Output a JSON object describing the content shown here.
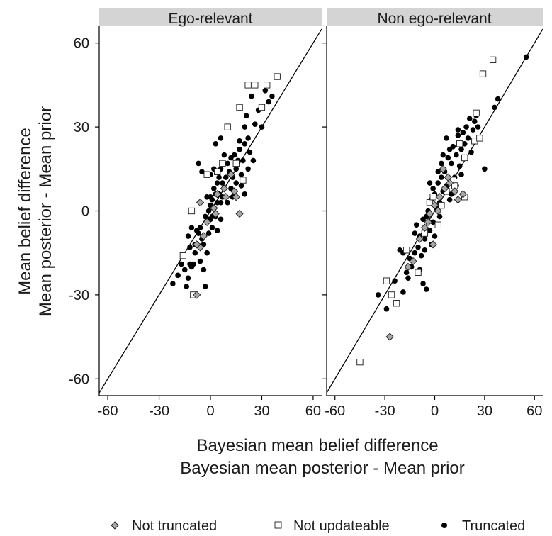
{
  "chart_data": {
    "type": "scatter",
    "xlabel": [
      "Bayesian mean belief difference",
      "Bayesian mean posterior - Mean prior"
    ],
    "ylabel": [
      "Mean belief difference",
      "Mean posterior - Mean prior"
    ],
    "xlim": [
      -65,
      65
    ],
    "ylim": [
      -66,
      66
    ],
    "x_ticks": [
      -60,
      -30,
      0,
      30,
      60
    ],
    "y_ticks": [
      -60,
      -30,
      0,
      30,
      60
    ],
    "reference_line": "y = x",
    "grid": false,
    "legend_position": "bottom",
    "legend": [
      {
        "key": "not_truncated",
        "label": "Not truncated",
        "marker": "diamond",
        "fill": "#a6a6a6"
      },
      {
        "key": "not_updateable",
        "label": "Not updateable",
        "marker": "square",
        "fill": "#ffffff"
      },
      {
        "key": "truncated",
        "label": "Truncated",
        "marker": "circle",
        "fill": "#000000"
      }
    ],
    "panels": [
      {
        "title": "Ego-relevant",
        "series": {
          "not_updateable": [
            [
              -11,
              0
            ],
            [
              -16,
              -16
            ],
            [
              -10,
              -30
            ],
            [
              10,
              30
            ],
            [
              17,
              37
            ],
            [
              22,
              45
            ],
            [
              26,
              45
            ],
            [
              30,
              37
            ],
            [
              33,
              45
            ],
            [
              39,
              48
            ],
            [
              19,
              11
            ],
            [
              15,
              17
            ],
            [
              -2,
              13
            ],
            [
              7,
              17
            ],
            [
              4,
              14
            ]
          ],
          "not_truncated": [
            [
              -6,
              3
            ],
            [
              -8,
              -30
            ],
            [
              17,
              -1
            ],
            [
              15,
              5
            ],
            [
              12,
              13
            ],
            [
              9,
              5
            ],
            [
              8,
              8
            ],
            [
              4,
              6
            ],
            [
              14,
              7
            ],
            [
              -6,
              -13
            ],
            [
              -8,
              -12
            ],
            [
              -2,
              -4
            ],
            [
              2,
              1
            ],
            [
              -4,
              -9
            ],
            [
              3,
              -1
            ]
          ],
          "truncated": [
            [
              -22,
              -26
            ],
            [
              -19,
              -23
            ],
            [
              -17,
              -19
            ],
            [
              -15,
              -21
            ],
            [
              -13,
              -24
            ],
            [
              -14,
              -27
            ],
            [
              -12,
              -19
            ],
            [
              -11,
              -20
            ],
            [
              -10,
              -19
            ],
            [
              -9,
              -12
            ],
            [
              -8,
              -12
            ],
            [
              -7,
              -8
            ],
            [
              -6,
              -6
            ],
            [
              -8,
              -7
            ],
            [
              -5,
              -10
            ],
            [
              -4,
              -12
            ],
            [
              -2,
              -15
            ],
            [
              -3,
              -2
            ],
            [
              -2,
              -4
            ],
            [
              -1,
              -8
            ],
            [
              -1,
              0
            ],
            [
              0,
              5
            ],
            [
              0,
              2
            ],
            [
              0,
              -3
            ],
            [
              1,
              4
            ],
            [
              1,
              -2
            ],
            [
              2,
              8
            ],
            [
              2,
              1
            ],
            [
              3,
              6
            ],
            [
              3,
              -2
            ],
            [
              4,
              10
            ],
            [
              4,
              3
            ],
            [
              5,
              12
            ],
            [
              5,
              6
            ],
            [
              6,
              -3
            ],
            [
              6,
              15
            ],
            [
              7,
              10
            ],
            [
              7,
              5
            ],
            [
              8,
              8
            ],
            [
              8,
              20
            ],
            [
              9,
              12
            ],
            [
              10,
              17
            ],
            [
              10,
              3
            ],
            [
              11,
              14
            ],
            [
              12,
              19
            ],
            [
              12,
              8
            ],
            [
              13,
              12
            ],
            [
              13,
              5
            ],
            [
              14,
              20
            ],
            [
              15,
              10
            ],
            [
              15,
              15
            ],
            [
              16,
              18
            ],
            [
              17,
              22
            ],
            [
              17,
              25
            ],
            [
              18,
              9
            ],
            [
              18,
              13
            ],
            [
              19,
              18
            ],
            [
              20,
              24
            ],
            [
              20,
              30
            ],
            [
              21,
              34
            ],
            [
              22,
              15
            ],
            [
              22,
              26
            ],
            [
              23,
              21
            ],
            [
              24,
              41
            ],
            [
              25,
              18
            ],
            [
              26,
              31
            ],
            [
              28,
              36
            ],
            [
              30,
              30
            ],
            [
              32,
              43
            ],
            [
              34,
              39
            ],
            [
              36,
              41
            ],
            [
              20,
              6
            ],
            [
              3,
              24
            ],
            [
              6,
              26
            ],
            [
              -5,
              14
            ],
            [
              -7,
              17
            ],
            [
              -2,
              5
            ],
            [
              -1,
              -3
            ],
            [
              1,
              -6
            ],
            [
              4,
              -7
            ],
            [
              -12,
              -13
            ],
            [
              -11,
              -6
            ],
            [
              -13,
              -9
            ],
            [
              -9,
              -15
            ],
            [
              -6,
              -18
            ],
            [
              -4,
              -21
            ],
            [
              -3,
              -27
            ],
            [
              0,
              13
            ],
            [
              2,
              15
            ],
            [
              6,
              3
            ]
          ]
        }
      },
      {
        "title": "Non ego-relevant",
        "series": {
          "not_updateable": [
            [
              -45,
              -54
            ],
            [
              -29,
              -25
            ],
            [
              -26,
              -30
            ],
            [
              -23,
              -33
            ],
            [
              -17,
              -14
            ],
            [
              -10,
              -22
            ],
            [
              -6,
              -8
            ],
            [
              -3,
              3
            ],
            [
              2,
              -5
            ],
            [
              7,
              7
            ],
            [
              11,
              11
            ],
            [
              15,
              24
            ],
            [
              18,
              19
            ],
            [
              24,
              25
            ],
            [
              25,
              35
            ],
            [
              27,
              26
            ],
            [
              29,
              49
            ],
            [
              35,
              54
            ],
            [
              -1,
              5
            ],
            [
              4,
              2
            ],
            [
              12,
              9
            ],
            [
              18,
              5
            ]
          ],
          "not_truncated": [
            [
              -27,
              -45
            ],
            [
              -16,
              -20
            ],
            [
              -13,
              -18
            ],
            [
              -9,
              -10
            ],
            [
              -6,
              -6
            ],
            [
              -3,
              -1
            ],
            [
              0,
              2
            ],
            [
              3,
              5
            ],
            [
              6,
              8
            ],
            [
              9,
              10
            ],
            [
              12,
              7
            ],
            [
              14,
              4
            ],
            [
              17,
              6
            ],
            [
              5,
              15
            ],
            [
              8,
              12
            ],
            [
              -1,
              -12
            ],
            [
              2,
              0
            ],
            [
              -4,
              -4
            ]
          ],
          "truncated": [
            [
              -34,
              -30
            ],
            [
              -29,
              -35
            ],
            [
              -24,
              -25
            ],
            [
              -21,
              -14
            ],
            [
              -19,
              -29
            ],
            [
              -17,
              -22
            ],
            [
              -16,
              -24
            ],
            [
              -15,
              -17
            ],
            [
              -14,
              -20
            ],
            [
              -12,
              -15
            ],
            [
              -11,
              -5
            ],
            [
              -10,
              -13
            ],
            [
              -9,
              -9
            ],
            [
              -8,
              -16
            ],
            [
              -7,
              -3
            ],
            [
              -6,
              -10
            ],
            [
              -5,
              -2
            ],
            [
              -4,
              0
            ],
            [
              -3,
              -7
            ],
            [
              -2,
              4
            ],
            [
              -1,
              -4
            ],
            [
              0,
              6
            ],
            [
              1,
              1
            ],
            [
              2,
              10
            ],
            [
              3,
              3
            ],
            [
              4,
              12
            ],
            [
              5,
              7
            ],
            [
              6,
              14
            ],
            [
              7,
              9
            ],
            [
              8,
              19
            ],
            [
              9,
              4
            ],
            [
              10,
              17
            ],
            [
              11,
              23
            ],
            [
              12,
              12
            ],
            [
              13,
              20
            ],
            [
              14,
              27
            ],
            [
              15,
              16
            ],
            [
              16,
              22
            ],
            [
              17,
              28
            ],
            [
              18,
              24
            ],
            [
              19,
              30
            ],
            [
              20,
              26
            ],
            [
              21,
              33
            ],
            [
              22,
              21
            ],
            [
              23,
              29
            ],
            [
              24,
              32
            ],
            [
              25,
              34
            ],
            [
              26,
              30
            ],
            [
              30,
              15
            ],
            [
              36,
              37
            ],
            [
              38,
              40
            ],
            [
              55,
              55
            ],
            [
              -9,
              -21
            ],
            [
              -7,
              -26
            ],
            [
              -5,
              -28
            ],
            [
              -2,
              -12
            ],
            [
              0,
              -9
            ],
            [
              3,
              -2
            ],
            [
              5,
              20
            ],
            [
              7,
              26
            ],
            [
              4,
              17
            ],
            [
              2,
              14
            ],
            [
              -3,
              10
            ],
            [
              -1,
              8
            ],
            [
              9,
              22
            ],
            [
              14,
              29
            ],
            [
              -19,
              -15
            ],
            [
              -12,
              -8
            ],
            [
              -6,
              -14
            ],
            [
              10,
              6
            ],
            [
              13,
              9
            ],
            [
              16,
              13
            ]
          ]
        }
      }
    ]
  }
}
